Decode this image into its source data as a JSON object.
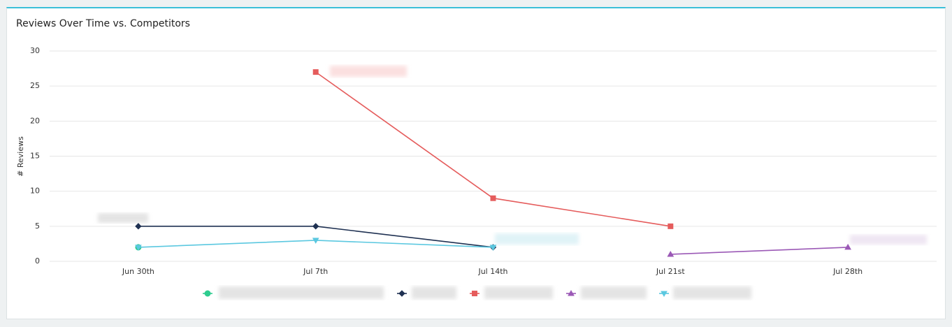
{
  "chart_data": {
    "type": "line",
    "title": "Reviews Over Time vs. Competitors",
    "y_label": "# Reviews",
    "categories": [
      "Jun 30th",
      "Jul 7th",
      "Jul 14th",
      "Jul 21st",
      "Jul 28th"
    ],
    "series": [
      {
        "color": "#2ecc8f",
        "marker": "circle",
        "values": [
          2,
          null,
          null,
          null,
          null
        ]
      },
      {
        "color": "#1f3152",
        "marker": "diamond",
        "values": [
          5,
          5,
          2,
          null,
          null
        ]
      },
      {
        "color": "#e55c5c",
        "marker": "square",
        "values": [
          null,
          27,
          9,
          5,
          null
        ]
      },
      {
        "color": "#9b59b6",
        "marker": "triangle",
        "values": [
          null,
          null,
          null,
          1,
          2
        ]
      },
      {
        "color": "#5bc8e0",
        "marker": "triangle-down",
        "values": [
          2,
          3,
          2,
          null,
          null
        ]
      }
    ],
    "ylim": [
      0,
      30
    ],
    "yticks": [
      0,
      5,
      10,
      15,
      20,
      25,
      30
    ],
    "grid": true
  }
}
